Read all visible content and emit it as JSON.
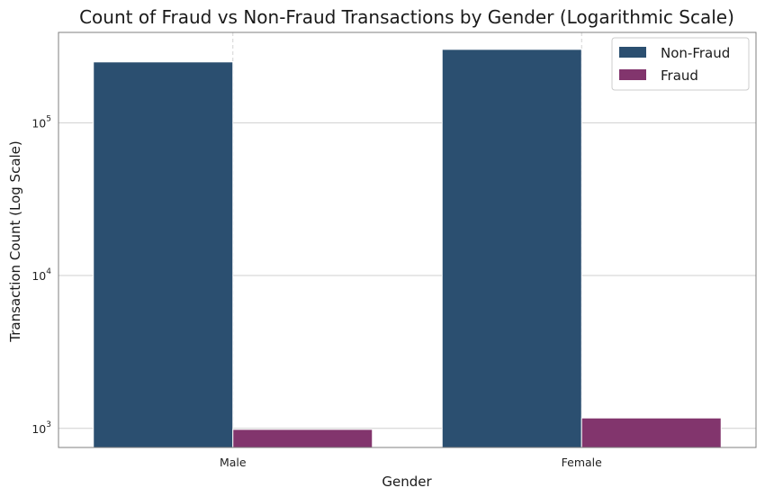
{
  "chart_data": {
    "type": "bar",
    "title": "Count of Fraud vs Non-Fraud Transactions by Gender (Logarithmic Scale)",
    "xlabel": "Gender",
    "ylabel": "Transaction Count (Log Scale)",
    "categories": [
      "Male",
      "Female"
    ],
    "series": [
      {
        "name": "Non-Fraud",
        "color": "#2b4f70",
        "values": [
          250000,
          302000
        ]
      },
      {
        "name": "Fraud",
        "color": "#82356d",
        "values": [
          985,
          1170
        ]
      }
    ],
    "y_scale": "log",
    "ylim": [
      750,
      390000
    ],
    "yticks": [
      {
        "base": "10",
        "exp": "3",
        "value": 1000
      },
      {
        "base": "10",
        "exp": "4",
        "value": 10000
      },
      {
        "base": "10",
        "exp": "5",
        "value": 100000
      }
    ],
    "grid": true,
    "legend_position": "top-right"
  }
}
